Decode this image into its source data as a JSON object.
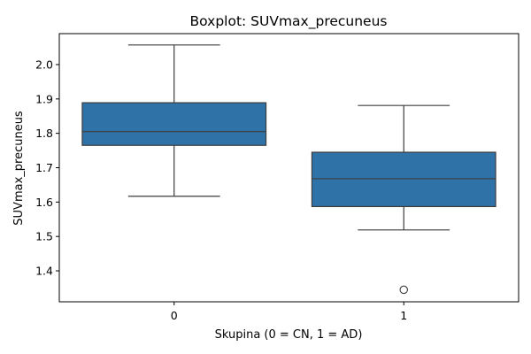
{
  "chart_data": {
    "type": "boxplot",
    "title": "Boxplot: SUVmax_precuneus",
    "xlabel": "Skupina (0 = CN, 1 = AD)",
    "ylabel": "SUVmax_precuneus",
    "categories": [
      "0",
      "1"
    ],
    "ylim": [
      1.31,
      2.09
    ],
    "yticks": [
      "1.4",
      "1.5",
      "1.6",
      "1.7",
      "1.8",
      "1.9",
      "2.0"
    ],
    "grid": false,
    "box_color": "#2e72a8",
    "edge_color": "#3d3d3d",
    "boxes": [
      {
        "category": "0",
        "whisker_low": 1.617,
        "q1": 1.765,
        "median": 1.805,
        "q3": 1.889,
        "whisker_high": 2.057,
        "outliers": []
      },
      {
        "category": "1",
        "whisker_low": 1.519,
        "q1": 1.587,
        "median": 1.668,
        "q3": 1.745,
        "whisker_high": 1.881,
        "outliers": [
          1.345
        ]
      }
    ]
  }
}
